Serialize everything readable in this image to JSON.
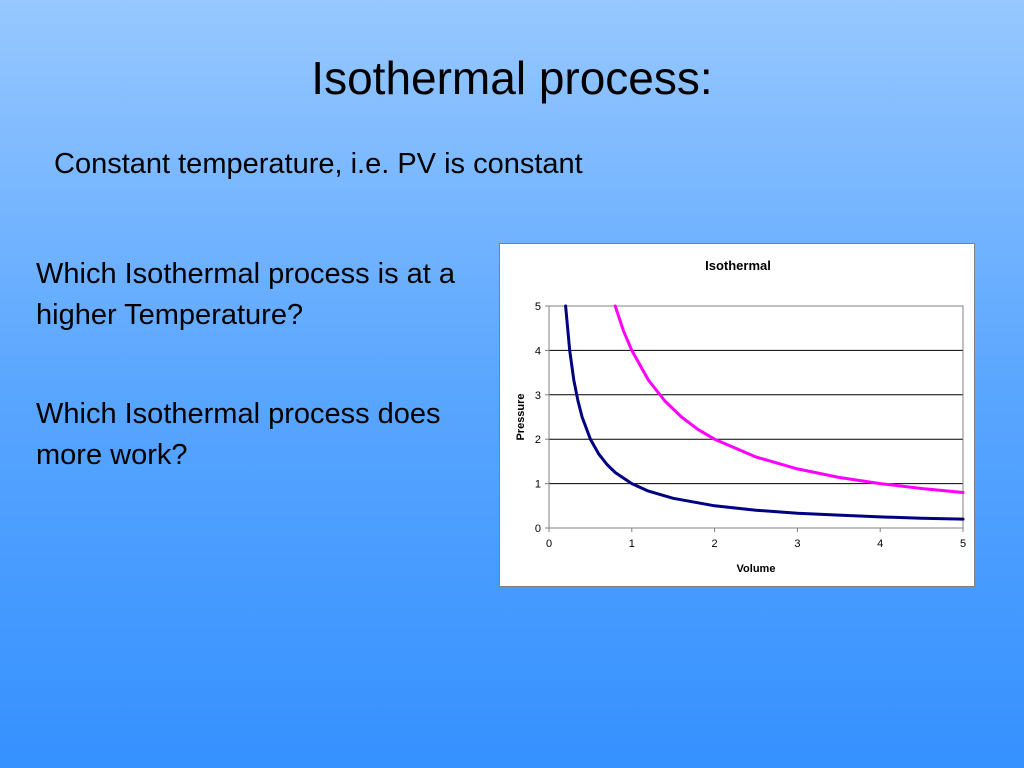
{
  "slide": {
    "title": "Isothermal process:",
    "subtitle": "Constant temperature, i.e. PV is constant",
    "questions": [
      "Which Isothermal process is at a higher Temperature?",
      "Which Isothermal process does more work?"
    ]
  },
  "chart_data": {
    "type": "line",
    "title": "Isothermal",
    "xlabel": "Volume",
    "ylabel": "Pressure",
    "xlim": [
      0,
      5
    ],
    "ylim": [
      0,
      5
    ],
    "xticks": [
      "0",
      "1",
      "2",
      "3",
      "4",
      "5"
    ],
    "yticks": [
      "0",
      "1",
      "2",
      "3",
      "4",
      "5"
    ],
    "grid": "horizontal",
    "legend": "none",
    "series": [
      {
        "color": "#000080",
        "x": [
          0.2,
          0.25,
          0.3,
          0.35,
          0.4,
          0.5,
          0.6,
          0.7,
          0.8,
          1.0,
          1.2,
          1.5,
          2.0,
          2.5,
          3.0,
          3.5,
          4.0,
          4.5,
          5.0
        ],
        "y": [
          5.0,
          4.0,
          3.33,
          2.86,
          2.5,
          2.0,
          1.67,
          1.43,
          1.25,
          1.0,
          0.83,
          0.67,
          0.5,
          0.4,
          0.33,
          0.29,
          0.25,
          0.22,
          0.2
        ]
      },
      {
        "color": "#ff00ff",
        "x": [
          0.8,
          0.9,
          1.0,
          1.2,
          1.4,
          1.6,
          1.8,
          2.0,
          2.5,
          3.0,
          3.5,
          4.0,
          4.5,
          5.0
        ],
        "y": [
          5.0,
          4.44,
          4.0,
          3.33,
          2.86,
          2.5,
          2.22,
          2.0,
          1.6,
          1.33,
          1.14,
          1.0,
          0.89,
          0.8
        ]
      }
    ]
  }
}
